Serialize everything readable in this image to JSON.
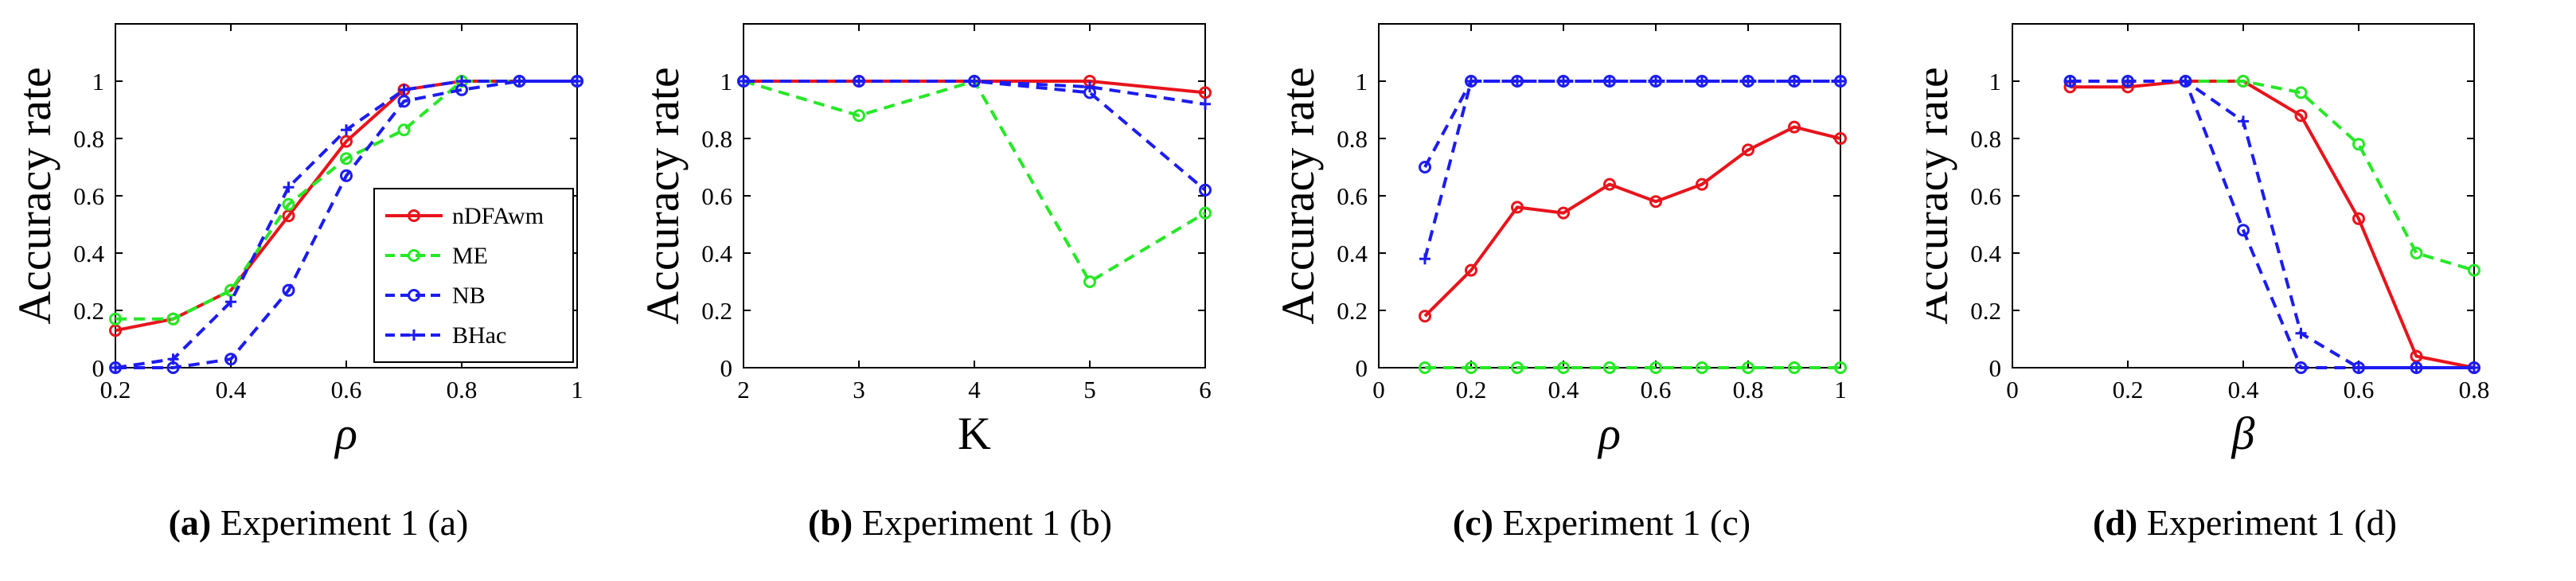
{
  "colors": {
    "nDFAwm": "#e8141c",
    "ME": "#26e826",
    "NB": "#1c1cf0",
    "BHac": "#1c1cf0"
  },
  "captions": [
    {
      "letter": "(a)",
      "text": " Experiment 1 (a)"
    },
    {
      "letter": "(b)",
      "text": " Experiment 1 (b)"
    },
    {
      "letter": "(c)",
      "text": " Experiment 1 (c)"
    },
    {
      "letter": "(d)",
      "text": " Experiment 1 (d)"
    }
  ],
  "chart_data": [
    {
      "type": "line",
      "ylabel": "Accuracy rate",
      "xlabel": "ρ",
      "xlim": [
        0.2,
        1
      ],
      "ylim": [
        0,
        1.2
      ],
      "xticks": [
        "0.2",
        "0.4",
        "0.6",
        "0.8",
        "1"
      ],
      "xtickvals": [
        0.2,
        0.4,
        0.6,
        0.8,
        1
      ],
      "yticks": [
        "0",
        "0.2",
        "0.4",
        "0.6",
        "0.8",
        "1"
      ],
      "ytickvals": [
        0,
        0.2,
        0.4,
        0.6,
        0.8,
        1
      ],
      "legend": "lower-right",
      "series": [
        {
          "name": "nDFAwm",
          "x": [
            0.2,
            0.3,
            0.4,
            0.5,
            0.6,
            0.7,
            0.8,
            0.9,
            1
          ],
          "values": [
            0.13,
            0.17,
            0.27,
            0.53,
            0.79,
            0.97,
            1,
            1,
            1
          ]
        },
        {
          "name": "ME",
          "x": [
            0.2,
            0.3,
            0.4,
            0.5,
            0.6,
            0.7,
            0.8,
            0.9,
            1
          ],
          "values": [
            0.17,
            0.17,
            0.27,
            0.57,
            0.73,
            0.83,
            1,
            1,
            1
          ]
        },
        {
          "name": "NB",
          "x": [
            0.2,
            0.3,
            0.4,
            0.5,
            0.6,
            0.7,
            0.8,
            0.9,
            1
          ],
          "values": [
            0,
            0,
            0.03,
            0.27,
            0.67,
            0.93,
            0.97,
            1,
            1
          ]
        },
        {
          "name": "BHac",
          "x": [
            0.2,
            0.3,
            0.4,
            0.5,
            0.6,
            0.7,
            0.8,
            0.9,
            1
          ],
          "values": [
            0,
            0.03,
            0.23,
            0.63,
            0.83,
            0.97,
            1,
            1,
            1
          ]
        }
      ]
    },
    {
      "type": "line",
      "ylabel": "Accuracy rate",
      "xlabel": "K",
      "xlim": [
        2,
        6
      ],
      "ylim": [
        0,
        1.2
      ],
      "xticks": [
        "2",
        "3",
        "4",
        "5",
        "6"
      ],
      "xtickvals": [
        2,
        3,
        4,
        5,
        6
      ],
      "yticks": [
        "0",
        "0.2",
        "0.4",
        "0.6",
        "0.8",
        "1"
      ],
      "ytickvals": [
        0,
        0.2,
        0.4,
        0.6,
        0.8,
        1
      ],
      "series": [
        {
          "name": "nDFAwm",
          "x": [
            2,
            3,
            4,
            5,
            6
          ],
          "values": [
            1,
            1,
            1,
            1,
            0.96
          ]
        },
        {
          "name": "ME",
          "x": [
            2,
            3,
            4,
            5,
            6
          ],
          "values": [
            1,
            0.88,
            1,
            0.3,
            0.54
          ]
        },
        {
          "name": "NB",
          "x": [
            2,
            3,
            4,
            5,
            6
          ],
          "values": [
            1,
            1,
            1,
            0.96,
            0.62
          ]
        },
        {
          "name": "BHac",
          "x": [
            2,
            3,
            4,
            5,
            6
          ],
          "values": [
            1,
            1,
            1,
            0.98,
            0.92
          ]
        }
      ]
    },
    {
      "type": "line",
      "ylabel": "Accuracy rate",
      "xlabel": "ρ",
      "xlim": [
        0,
        1
      ],
      "ylim": [
        0,
        1.2
      ],
      "xticks": [
        "0",
        "0.2",
        "0.4",
        "0.6",
        "0.8",
        "1"
      ],
      "xtickvals": [
        0,
        0.2,
        0.4,
        0.6,
        0.8,
        1
      ],
      "yticks": [
        "0",
        "0.2",
        "0.4",
        "0.6",
        "0.8",
        "1"
      ],
      "ytickvals": [
        0,
        0.2,
        0.4,
        0.6,
        0.8,
        1
      ],
      "series": [
        {
          "name": "nDFAwm",
          "x": [
            0.1,
            0.2,
            0.3,
            0.4,
            0.5,
            0.6,
            0.7,
            0.8,
            0.9,
            1
          ],
          "values": [
            0.18,
            0.34,
            0.56,
            0.54,
            0.64,
            0.58,
            0.64,
            0.76,
            0.84,
            0.8
          ]
        },
        {
          "name": "ME",
          "x": [
            0.1,
            0.2,
            0.3,
            0.4,
            0.5,
            0.6,
            0.7,
            0.8,
            0.9,
            1
          ],
          "values": [
            0,
            0,
            0,
            0,
            0,
            0,
            0,
            0,
            0,
            0
          ]
        },
        {
          "name": "NB",
          "x": [
            0.1,
            0.2,
            0.3,
            0.4,
            0.5,
            0.6,
            0.7,
            0.8,
            0.9,
            1
          ],
          "values": [
            0.7,
            1,
            1,
            1,
            1,
            1,
            1,
            1,
            1,
            1
          ]
        },
        {
          "name": "BHac",
          "x": [
            0.1,
            0.2,
            0.3,
            0.4,
            0.5,
            0.6,
            0.7,
            0.8,
            0.9,
            1
          ],
          "values": [
            0.38,
            1,
            1,
            1,
            1,
            1,
            1,
            1,
            1,
            1
          ]
        }
      ]
    },
    {
      "type": "line",
      "ylabel": "Accuracy rate",
      "xlabel": "β",
      "xlim": [
        0,
        0.8
      ],
      "ylim": [
        0,
        1.2
      ],
      "xticks": [
        "0",
        "0.2",
        "0.4",
        "0.6",
        "0.8"
      ],
      "xtickvals": [
        0,
        0.2,
        0.4,
        0.6,
        0.8
      ],
      "yticks": [
        "0",
        "0.2",
        "0.4",
        "0.6",
        "0.8",
        "1"
      ],
      "ytickvals": [
        0,
        0.2,
        0.4,
        0.6,
        0.8,
        1
      ],
      "series": [
        {
          "name": "nDFAwm",
          "x": [
            0.1,
            0.2,
            0.3,
            0.4,
            0.5,
            0.6,
            0.7,
            0.8
          ],
          "values": [
            0.98,
            0.98,
            1,
            1,
            0.88,
            0.52,
            0.04,
            0
          ]
        },
        {
          "name": "ME",
          "x": [
            0.1,
            0.2,
            0.3,
            0.4,
            0.5,
            0.6,
            0.7,
            0.8
          ],
          "values": [
            1,
            1,
            1,
            1,
            0.96,
            0.78,
            0.4,
            0.34
          ]
        },
        {
          "name": "NB",
          "x": [
            0.1,
            0.2,
            0.3,
            0.4,
            0.5,
            0.6,
            0.7,
            0.8
          ],
          "values": [
            1,
            1,
            1,
            0.48,
            0,
            0,
            0,
            0
          ]
        },
        {
          "name": "BHac",
          "x": [
            0.1,
            0.2,
            0.3,
            0.4,
            0.5,
            0.6,
            0.7,
            0.8
          ],
          "values": [
            1,
            1,
            1,
            0.86,
            0.12,
            0,
            0,
            0
          ]
        }
      ]
    }
  ]
}
